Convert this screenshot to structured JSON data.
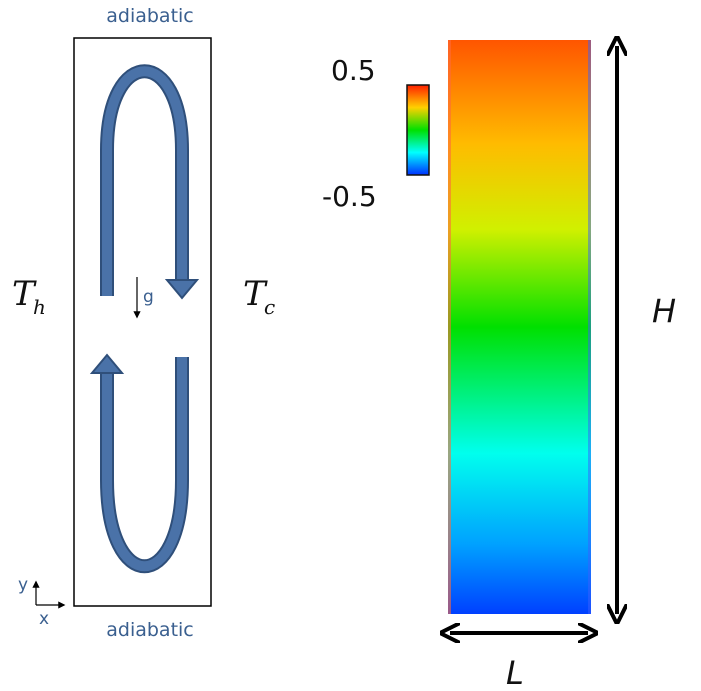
{
  "left_panel": {
    "top_label": "adiabatic",
    "bottom_label": "adiabatic",
    "hot_wall": {
      "symbol": "T",
      "subscript": "h"
    },
    "cold_wall": {
      "symbol": "T",
      "subscript": "c"
    },
    "gravity_label": "g",
    "axis_x_label": "x",
    "axis_y_label": "y",
    "arrow_color": "#4a72a8"
  },
  "right_panel": {
    "colorbar_max": "0.5",
    "colorbar_min": "-0.5",
    "height_label": "H",
    "width_label": "L",
    "colors": [
      "#ff4000",
      "#ffc000",
      "#00e000",
      "#00ffff",
      "#0040ff"
    ]
  }
}
